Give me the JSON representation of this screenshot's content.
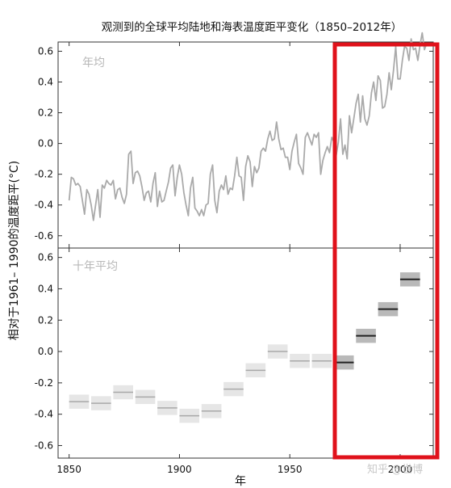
{
  "chart_data": {
    "type": "line",
    "title": "观测到的全球平均陆地和海表温度距平变化（1850–2012年）",
    "xlabel": "年",
    "ylabel": "相对于1961– 1990的温度距平(°C)",
    "xlim": [
      1845,
      2015
    ],
    "x_ticks": [
      "1850",
      "1900",
      "1950",
      "2000"
    ],
    "panels": [
      {
        "label": "年均",
        "ylim": [
          -0.68,
          0.66
        ],
        "y_ticks": [
          "0.6",
          "0.4",
          "0.2",
          "0.0",
          "-0.2",
          "-0.4",
          "-0.6"
        ],
        "series": [
          {
            "color": "#aaaaaa",
            "x": [
              1850,
              1851,
              1852,
              1853,
              1854,
              1855,
              1856,
              1857,
              1858,
              1859,
              1860,
              1861,
              1862,
              1863,
              1864,
              1865,
              1866,
              1867,
              1868,
              1869,
              1870,
              1871,
              1872,
              1873,
              1874,
              1875,
              1876,
              1877,
              1878,
              1879,
              1880,
              1881,
              1882,
              1883,
              1884,
              1885,
              1886,
              1887,
              1888,
              1889,
              1890,
              1891,
              1892,
              1893,
              1894,
              1895,
              1896,
              1897,
              1898,
              1899,
              1900,
              1901,
              1902,
              1903,
              1904,
              1905,
              1906,
              1907,
              1908,
              1909,
              1910,
              1911,
              1912,
              1913,
              1914,
              1915,
              1916,
              1917,
              1918,
              1919,
              1920,
              1921,
              1922,
              1923,
              1924,
              1925,
              1926,
              1927,
              1928,
              1929,
              1930,
              1931,
              1932,
              1933,
              1934,
              1935,
              1936,
              1937,
              1938,
              1939,
              1940,
              1941,
              1942,
              1943,
              1944,
              1945,
              1946,
              1947,
              1948,
              1949,
              1950,
              1951,
              1952,
              1953,
              1954,
              1955,
              1956,
              1957,
              1958,
              1959,
              1960,
              1961,
              1962,
              1963,
              1964,
              1965,
              1966,
              1967,
              1968,
              1969,
              1970,
              1971,
              1972,
              1973,
              1974,
              1975,
              1976,
              1977,
              1978,
              1979,
              1980,
              1981,
              1982,
              1983,
              1984,
              1985,
              1986,
              1987,
              1988,
              1989,
              1990,
              1991,
              1992,
              1993,
              1994,
              1995,
              1996,
              1997,
              1998,
              1999,
              2000,
              2001,
              2002,
              2003,
              2004,
              2005,
              2006,
              2007,
              2008,
              2009,
              2010,
              2011,
              2012
            ],
            "y": [
              -0.37,
              -0.22,
              -0.23,
              -0.27,
              -0.26,
              -0.28,
              -0.37,
              -0.46,
              -0.3,
              -0.33,
              -0.4,
              -0.5,
              -0.4,
              -0.3,
              -0.48,
              -0.27,
              -0.29,
              -0.24,
              -0.26,
              -0.27,
              -0.24,
              -0.36,
              -0.3,
              -0.29,
              -0.35,
              -0.39,
              -0.33,
              -0.07,
              -0.05,
              -0.26,
              -0.19,
              -0.18,
              -0.21,
              -0.28,
              -0.37,
              -0.32,
              -0.31,
              -0.38,
              -0.26,
              -0.19,
              -0.41,
              -0.31,
              -0.38,
              -0.37,
              -0.31,
              -0.25,
              -0.16,
              -0.14,
              -0.34,
              -0.22,
              -0.14,
              -0.2,
              -0.32,
              -0.4,
              -0.47,
              -0.29,
              -0.22,
              -0.42,
              -0.44,
              -0.47,
              -0.43,
              -0.47,
              -0.4,
              -0.39,
              -0.2,
              -0.14,
              -0.37,
              -0.45,
              -0.31,
              -0.27,
              -0.3,
              -0.21,
              -0.33,
              -0.29,
              -0.3,
              -0.21,
              -0.09,
              -0.21,
              -0.22,
              -0.37,
              -0.15,
              -0.08,
              -0.12,
              -0.28,
              -0.15,
              -0.19,
              -0.16,
              -0.05,
              -0.03,
              -0.05,
              0.03,
              0.08,
              0.02,
              0.03,
              0.14,
              0.03,
              -0.04,
              -0.03,
              -0.09,
              -0.09,
              -0.17,
              -0.05,
              0.01,
              0.06,
              -0.13,
              -0.16,
              -0.2,
              0.04,
              0.07,
              0.03,
              -0.01,
              0.06,
              0.04,
              0.07,
              -0.2,
              -0.11,
              -0.06,
              -0.02,
              -0.06,
              0.04,
              0.01,
              -0.08,
              0.01,
              0.16,
              -0.07,
              -0.01,
              -0.1,
              0.18,
              0.07,
              0.16,
              0.26,
              0.32,
              0.14,
              0.31,
              0.16,
              0.12,
              0.18,
              0.33,
              0.4,
              0.28,
              0.44,
              0.41,
              0.23,
              0.24,
              0.32,
              0.46,
              0.35,
              0.48,
              0.63,
              0.42,
              0.42,
              0.54,
              0.63,
              0.62,
              0.54,
              0.68,
              0.61,
              0.62,
              0.54,
              0.64,
              0.72,
              0.61,
              0.65
            ]
          }
        ]
      },
      {
        "label": "十年平均",
        "ylim": [
          -0.68,
          0.66
        ],
        "y_ticks": [
          "0.6",
          "0.4",
          "0.2",
          "0.0",
          "-0.2",
          "-0.4",
          "-0.6"
        ],
        "decades": [
          1850,
          1860,
          1870,
          1880,
          1890,
          1900,
          1910,
          1920,
          1930,
          1940,
          1950,
          1960,
          1970,
          1980,
          1990,
          2000
        ],
        "decadal_mean": [
          -0.32,
          -0.33,
          -0.26,
          -0.29,
          -0.36,
          -0.41,
          -0.38,
          -0.24,
          -0.12,
          0.0,
          -0.06,
          -0.06,
          -0.07,
          0.1,
          0.27,
          0.46
        ]
      }
    ]
  },
  "watermark": "知乎 @世博"
}
